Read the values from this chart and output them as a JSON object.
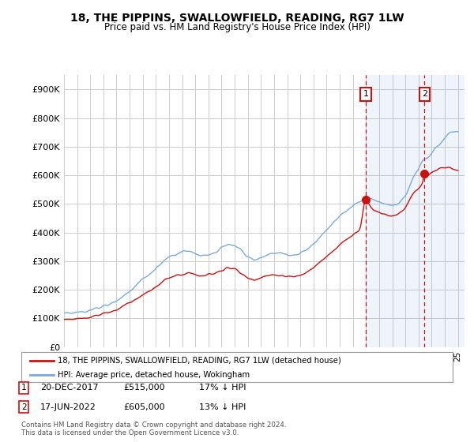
{
  "title": "18, THE PIPPINS, SWALLOWFIELD, READING, RG7 1LW",
  "subtitle": "Price paid vs. HM Land Registry's House Price Index (HPI)",
  "ylabel_ticks": [
    "£0",
    "£100K",
    "£200K",
    "£300K",
    "£400K",
    "£500K",
    "£600K",
    "£700K",
    "£800K",
    "£900K"
  ],
  "ytick_values": [
    0,
    100000,
    200000,
    300000,
    400000,
    500000,
    600000,
    700000,
    800000,
    900000
  ],
  "ylim": [
    0,
    950000
  ],
  "xlim_start": 1995.25,
  "xlim_end": 2025.5,
  "hpi_color": "#7aaadd",
  "price_color": "#cc1111",
  "marker1_date": 2017.98,
  "marker1_price": 515000,
  "marker2_date": 2022.46,
  "marker2_price": 605000,
  "legend_line1": "18, THE PIPPINS, SWALLOWFIELD, READING, RG7 1LW (detached house)",
  "legend_line2": "HPI: Average price, detached house, Wokingham",
  "footer": "Contains HM Land Registry data © Crown copyright and database right 2024.\nThis data is licensed under the Open Government Licence v3.0.",
  "background_color": "#ffffff",
  "grid_color": "#cccccc",
  "shade_color": "#ddeeff"
}
